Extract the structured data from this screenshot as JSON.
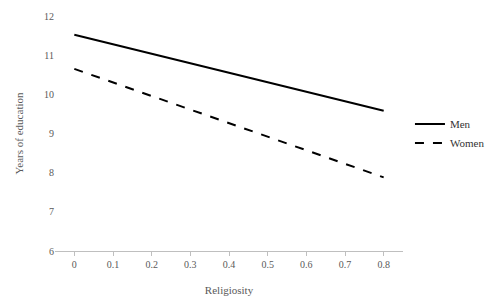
{
  "chart_data": {
    "type": "line",
    "x_label": "Religiosity",
    "y_label": "Years of education",
    "x": [
      0,
      0.8
    ],
    "series": [
      {
        "name": "Men",
        "color": "#000000",
        "line_style": "solid",
        "values": [
          11.52,
          9.58
        ]
      },
      {
        "name": "Women",
        "color": "#000000",
        "line_style": "dash",
        "values": [
          10.65,
          7.88
        ]
      }
    ],
    "xlim": [
      -0.05,
      0.85
    ],
    "xticks": [
      0,
      0.1,
      0.2,
      0.3,
      0.4,
      0.5,
      0.6,
      0.7,
      0.8
    ],
    "ylim": [
      6,
      12
    ],
    "yticks": [
      6,
      7,
      8,
      9,
      10,
      11,
      12
    ],
    "grid": false,
    "legend": "right"
  }
}
